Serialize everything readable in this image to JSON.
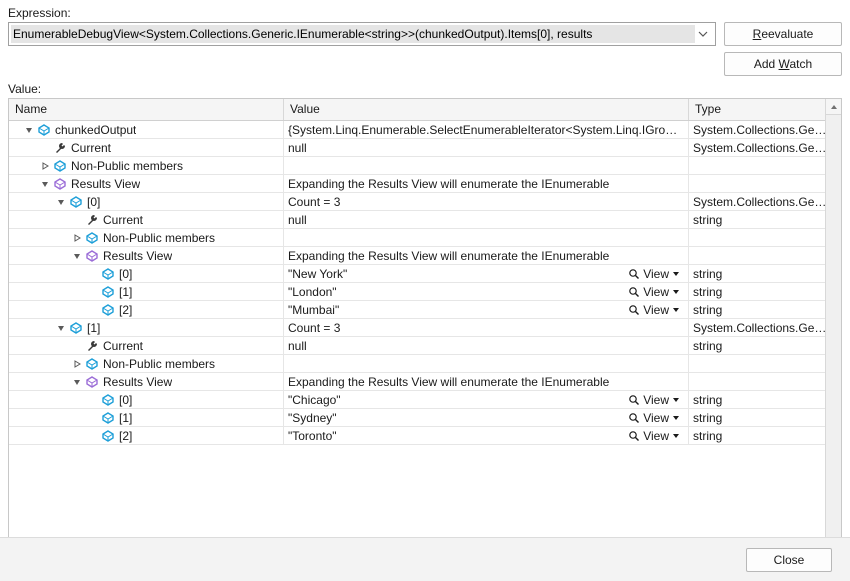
{
  "labels": {
    "expression": "Expression:",
    "value": "Value:",
    "reevaluate_pre": "",
    "reevaluate_u": "R",
    "reevaluate_post": "eevaluate",
    "addwatch_pre": "Add ",
    "addwatch_u": "W",
    "addwatch_post": "atch",
    "close": "Close"
  },
  "expression_text": "EnumerableDebugView<System.Collections.Generic.IEnumerable<string>>(chunkedOutput).Items[0], results",
  "columns": {
    "name": "Name",
    "value": "Value",
    "type": "Type"
  },
  "view_label": "View",
  "rows": [
    {
      "depth": 0,
      "expander": "open",
      "icon": "class",
      "name": "chunkedOutput",
      "value": "{System.Linq.Enumerable.SelectEnumerableIterator<System.Linq.IGrou…",
      "type": "System.Collections.Ge…",
      "view": false
    },
    {
      "depth": 1,
      "expander": "none",
      "icon": "wrench",
      "name": "Current",
      "value": "null",
      "type": "System.Collections.Ge…",
      "view": false
    },
    {
      "depth": 1,
      "expander": "closed",
      "icon": "class",
      "name": "Non-Public members",
      "value": "",
      "type": "",
      "view": false
    },
    {
      "depth": 1,
      "expander": "open",
      "icon": "results",
      "name": "Results View",
      "value": "Expanding the Results View will enumerate the IEnumerable",
      "type": "",
      "view": false
    },
    {
      "depth": 2,
      "expander": "open",
      "icon": "class",
      "name": "[0]",
      "value": "Count = 3",
      "type": "System.Collections.Ge…",
      "view": false
    },
    {
      "depth": 3,
      "expander": "none",
      "icon": "wrench",
      "name": "Current",
      "value": "null",
      "type": "string",
      "view": false
    },
    {
      "depth": 3,
      "expander": "closed",
      "icon": "class",
      "name": "Non-Public members",
      "value": "",
      "type": "",
      "view": false
    },
    {
      "depth": 3,
      "expander": "open",
      "icon": "results",
      "name": "Results View",
      "value": "Expanding the Results View will enumerate the IEnumerable",
      "type": "",
      "view": false
    },
    {
      "depth": 4,
      "expander": "none",
      "icon": "class",
      "name": "[0]",
      "value": "\"New York\"",
      "type": "string",
      "view": true
    },
    {
      "depth": 4,
      "expander": "none",
      "icon": "class",
      "name": "[1]",
      "value": "\"London\"",
      "type": "string",
      "view": true
    },
    {
      "depth": 4,
      "expander": "none",
      "icon": "class",
      "name": "[2]",
      "value": "\"Mumbai\"",
      "type": "string",
      "view": true
    },
    {
      "depth": 2,
      "expander": "open",
      "icon": "class",
      "name": "[1]",
      "value": "Count = 3",
      "type": "System.Collections.Ge…",
      "view": false
    },
    {
      "depth": 3,
      "expander": "none",
      "icon": "wrench",
      "name": "Current",
      "value": "null",
      "type": "string",
      "view": false
    },
    {
      "depth": 3,
      "expander": "closed",
      "icon": "class",
      "name": "Non-Public members",
      "value": "",
      "type": "",
      "view": false
    },
    {
      "depth": 3,
      "expander": "open",
      "icon": "results",
      "name": "Results View",
      "value": "Expanding the Results View will enumerate the IEnumerable",
      "type": "",
      "view": false
    },
    {
      "depth": 4,
      "expander": "none",
      "icon": "class",
      "name": "[0]",
      "value": "\"Chicago\"",
      "type": "string",
      "view": true
    },
    {
      "depth": 4,
      "expander": "none",
      "icon": "class",
      "name": "[1]",
      "value": "\"Sydney\"",
      "type": "string",
      "view": true
    },
    {
      "depth": 4,
      "expander": "none",
      "icon": "class",
      "name": "[2]",
      "value": "\"Toronto\"",
      "type": "string",
      "view": true
    }
  ],
  "colors": {
    "icon_class": "#1e9fd8",
    "icon_results": "#9b6dd7",
    "icon_wrench": "#3a3a3a",
    "twisty": "#5a5a5a"
  }
}
